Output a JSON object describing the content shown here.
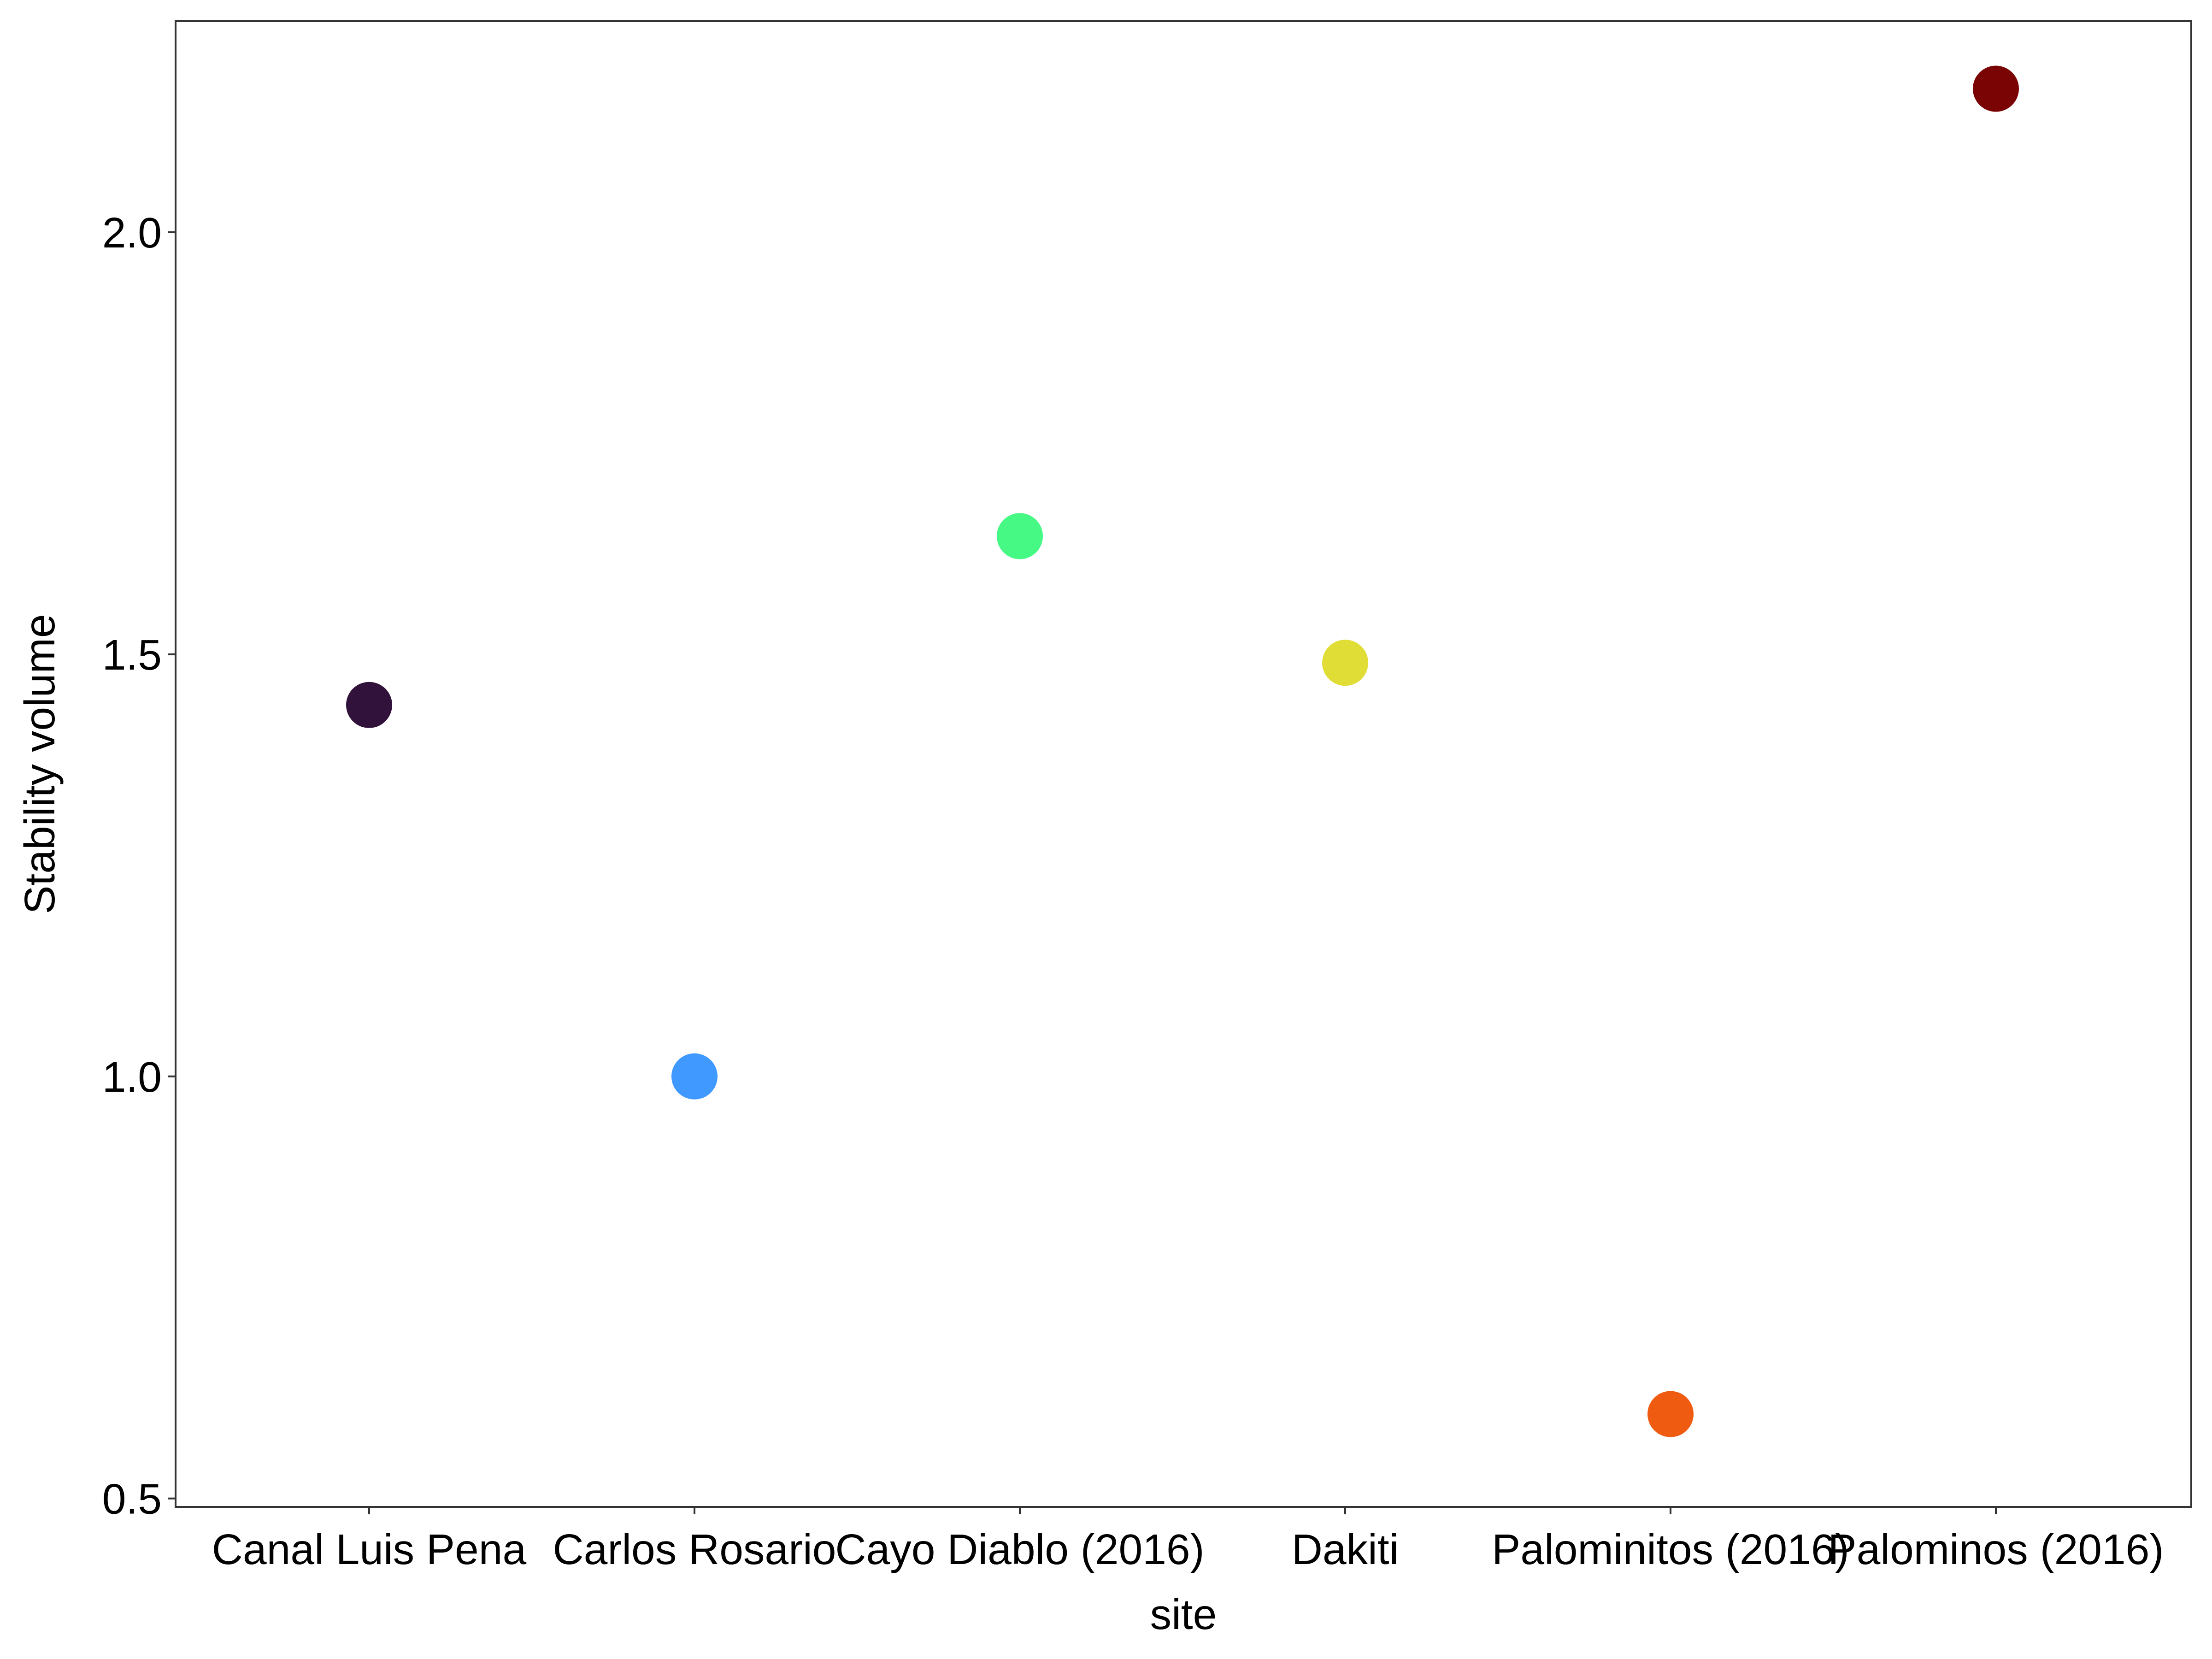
{
  "chart_data": {
    "type": "scatter",
    "xlabel": "site",
    "ylabel": "Stability volume",
    "categories": [
      "Canal Luis Pena",
      "Carlos Rosario",
      "Cayo Diablo (2016)",
      "Dakiti",
      "Palominitos (2016)",
      "Palominos (2016)"
    ],
    "points": [
      {
        "x": "Canal Luis Pena",
        "y": 1.44,
        "color": "#30123B"
      },
      {
        "x": "Carlos Rosario",
        "y": 1.0,
        "color": "#4099FF"
      },
      {
        "x": "Cayo Diablo (2016)",
        "y": 1.64,
        "color": "#46F884"
      },
      {
        "x": "Dakiti",
        "y": 1.49,
        "color": "#E1DD37"
      },
      {
        "x": "Palominitos (2016)",
        "y": 0.6,
        "color": "#F05B12"
      },
      {
        "x": "Palominos (2016)",
        "y": 2.17,
        "color": "#7A0403"
      }
    ],
    "yticks": [
      0.5,
      1.0,
      1.5,
      2.0
    ],
    "ytick_labels": [
      "0.5",
      "1.0",
      "1.5",
      "2.0"
    ],
    "ylim": [
      0.49,
      2.25
    ],
    "grid": false,
    "legend": "none"
  }
}
